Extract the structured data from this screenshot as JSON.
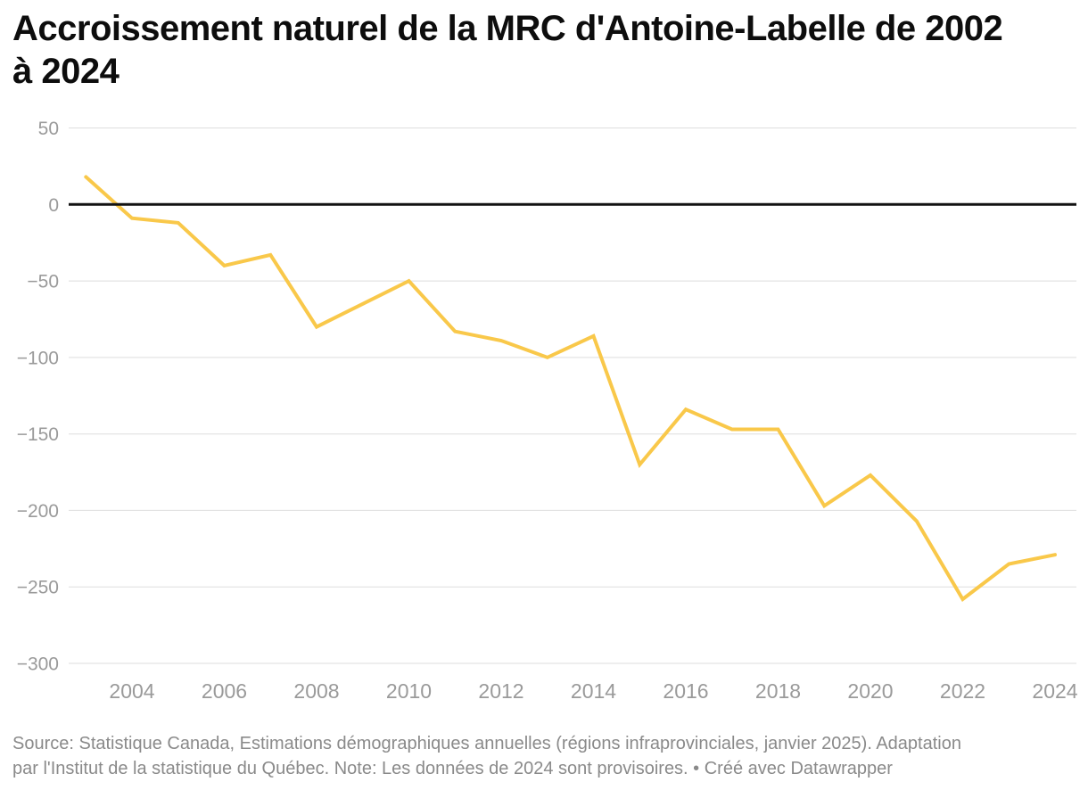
{
  "header": {
    "title_lines": [
      "Accroissement naturel de la MRC d'Antoine-Labelle de 2002",
      "à 2024"
    ]
  },
  "footer": {
    "lines": [
      "Source: Statistique Canada, Estimations démographiques annuelles (régions infraprovinciales, janvier 2025). Adaptation",
      "par l'Institut de la statistique du Québec. Note: Les données de 2024 sont provisoires. • Créé avec Datawrapper"
    ]
  },
  "chart_data": {
    "type": "line",
    "title": "Accroissement naturel de la MRC d'Antoine-Labelle de 2002 à 2024",
    "series_name": "Accroissement naturel",
    "x": [
      2003,
      2004,
      2005,
      2006,
      2007,
      2008,
      2009,
      2010,
      2011,
      2012,
      2013,
      2014,
      2015,
      2016,
      2017,
      2018,
      2019,
      2020,
      2021,
      2022,
      2023,
      2024
    ],
    "values": [
      18,
      -9,
      -12,
      -40,
      -33,
      -80,
      -65,
      -50,
      -83,
      -89,
      -100,
      -86,
      -170,
      -134,
      -147,
      -147,
      -197,
      -177,
      -207,
      -258,
      -235,
      -229
    ],
    "xlabel": "",
    "ylabel": "",
    "ylim": [
      -300,
      50
    ],
    "y_ticks": [
      50,
      0,
      -50,
      -100,
      -150,
      -200,
      -250,
      -300
    ],
    "x_ticks": [
      2004,
      2006,
      2008,
      2010,
      2012,
      2014,
      2016,
      2018,
      2020,
      2022,
      2024
    ],
    "grid": "horizontal",
    "zero_baseline": true,
    "legend": "none",
    "colors": {
      "line": "#f9c84a",
      "grid": "#dedede",
      "zero_line": "#121212",
      "tick_label": "#9a9a9a",
      "title": "#0d0d0d",
      "footer_text": "#8a8a8a",
      "background": "#ffffff"
    }
  }
}
